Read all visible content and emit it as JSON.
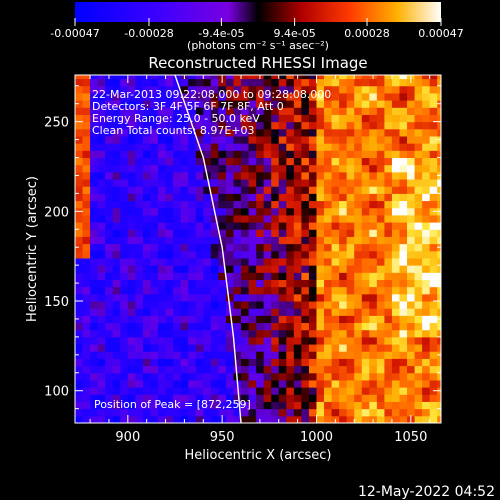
{
  "colorbar": {
    "tick_labels": [
      "-0.00047",
      "-0.00028",
      "-9.4e-05",
      "9.4e-05",
      "0.00028",
      "0.00047"
    ],
    "tick_values": [
      -0.00047,
      -0.00028,
      -9.4e-05,
      9.4e-05,
      0.00028,
      0.00047
    ],
    "range": [
      -0.00047,
      0.00047
    ],
    "units": "(photons cm⁻² s⁻¹ asec⁻²)"
  },
  "info_lines": [
    "22-Mar-2013 09:22:08.000 to 09:28:08.000",
    "Detectors: 3F 4F 5F 6F 7F 8F, Att 0",
    "Energy Range: 25.0 - 50.0 keV",
    "Clean    Total counts: 8.97E+03"
  ],
  "peak_label": "Position of Peak = [872,259]",
  "footer_timestamp": "12-May-2022 04:52",
  "chart_data": {
    "type": "heatmap",
    "title": "Reconstructed RHESSI Image",
    "xlabel": "Heliocentric X (arcsec)",
    "ylabel": "Heliocentric Y (arcsec)",
    "xlim": [
      872,
      1066
    ],
    "ylim": [
      82,
      276
    ],
    "xticks": [
      900,
      950,
      1000,
      1050
    ],
    "xtick_labels": [
      "900",
      "950",
      "1000",
      "1050"
    ],
    "yticks": [
      100,
      150,
      200,
      250
    ],
    "ytick_labels": [
      "100",
      "150",
      "200",
      "250"
    ],
    "grid": false,
    "colormap": "blue-purple-red-yellow-white",
    "limb_curve": [
      [
        925,
        276
      ],
      [
        940,
        230
      ],
      [
        950,
        180
      ],
      [
        956,
        130
      ],
      [
        960,
        82
      ]
    ],
    "peak": [
      872,
      259
    ],
    "regions": [
      {
        "name": "negative",
        "x": [
          895,
          975
        ],
        "approx_value": -0.00015
      },
      {
        "name": "positive",
        "x": [
          1000,
          1066
        ],
        "approx_value": 0.0003
      }
    ]
  }
}
